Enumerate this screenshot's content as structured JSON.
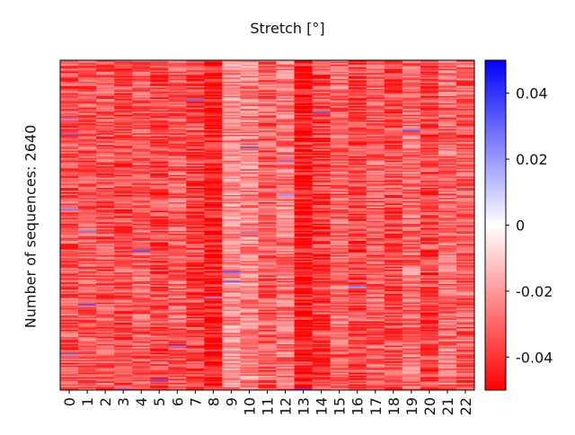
{
  "chart_data": {
    "type": "heatmap",
    "title": "Stretch [°]",
    "ylabel": "Number of sequences: 2640",
    "xlabel": "",
    "categories": [
      "0",
      "1",
      "2",
      "3",
      "4",
      "5",
      "6",
      "7",
      "8",
      "9",
      "10",
      "11",
      "12",
      "13",
      "14",
      "15",
      "16",
      "17",
      "18",
      "19",
      "20",
      "21",
      "22"
    ],
    "column_mean": [
      -0.034,
      -0.032,
      -0.033,
      -0.036,
      -0.031,
      -0.036,
      -0.031,
      -0.037,
      -0.044,
      -0.022,
      -0.024,
      -0.032,
      -0.027,
      -0.045,
      -0.037,
      -0.03,
      -0.036,
      -0.031,
      -0.035,
      -0.028,
      -0.036,
      -0.029,
      -0.032
    ],
    "rows": 2640,
    "colorbar": {
      "range": [
        -0.05,
        0.05
      ],
      "ticks": [
        "-0.04",
        "-0.02",
        "0",
        "0.02",
        "0.04"
      ],
      "tick_values": [
        -0.04,
        -0.02,
        0,
        0.02,
        0.04
      ],
      "colormap": "bwr",
      "low_color": "#ff0000",
      "mid_color": "#ffffff",
      "high_color": "#0000ff"
    },
    "grid": false
  }
}
